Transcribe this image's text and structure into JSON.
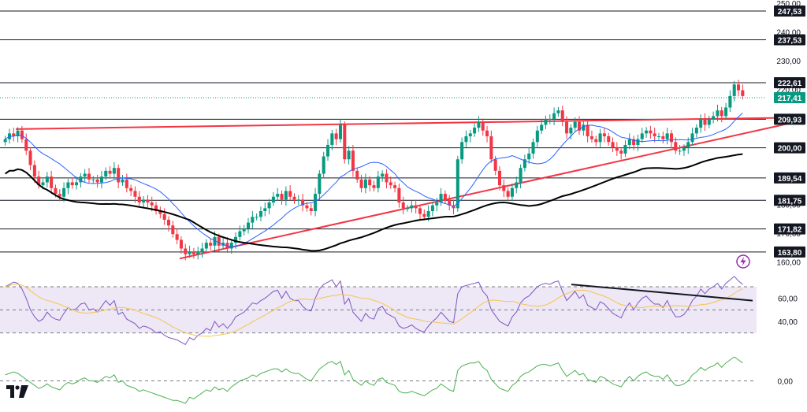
{
  "colors": {
    "background": "#ffffff",
    "candle_up": "#089981",
    "candle_down": "#f23645",
    "level_line": "#131722",
    "trend_line": "#f23645",
    "ma_fast": "#2962ff",
    "ma_slow": "#000000",
    "rsi_line": "#7e57c2",
    "rsi_signal": "#f7c548",
    "rsi_band": "#ede7f6",
    "momentum_line": "#4caf50",
    "last_price_tag": "#089981",
    "level_tag": "#131722"
  },
  "chart_data": {
    "type": "candlestick",
    "title": "",
    "ylim": [
      155,
      250
    ],
    "price_axis_ticks": [
      "250,00",
      "240,00",
      "230,00",
      "220,00",
      "210,00",
      "200,00",
      "190,00",
      "180,00",
      "170,00",
      "160,00"
    ],
    "support_resistance_levels": [
      {
        "value": 247.53,
        "label": "247,53"
      },
      {
        "value": 237.53,
        "label": "237,53"
      },
      {
        "value": 222.61,
        "label": "222,61"
      },
      {
        "value": 209.93,
        "label": "209,93"
      },
      {
        "value": 200.0,
        "label": "200,00"
      },
      {
        "value": 189.54,
        "label": "189,54"
      },
      {
        "value": 181.75,
        "label": "181,75"
      },
      {
        "value": 171.82,
        "label": "171,82"
      },
      {
        "value": 163.8,
        "label": "163,80"
      }
    ],
    "last_price": {
      "value": 217.41,
      "label": "217,41"
    },
    "close_series": [
      203,
      205,
      204,
      206,
      203,
      199,
      194,
      190,
      187,
      188,
      190,
      186,
      184,
      183,
      186,
      188,
      187,
      188,
      190,
      191,
      189,
      189,
      188,
      190,
      192,
      191,
      193,
      188,
      189,
      186,
      185,
      183,
      181,
      182,
      181,
      180,
      178,
      177,
      175,
      173,
      170,
      168,
      165,
      163,
      164,
      163,
      164,
      165,
      167,
      166,
      169,
      166,
      167,
      165,
      167,
      169,
      171,
      172,
      174,
      176,
      176,
      178,
      179,
      181,
      183,
      184,
      182,
      185,
      183,
      182,
      182,
      180,
      179,
      178,
      184,
      191,
      197,
      201,
      205,
      203,
      208,
      196,
      199,
      192,
      189,
      186,
      189,
      187,
      186,
      190,
      191,
      188,
      187,
      186,
      181,
      179,
      179,
      180,
      179,
      177,
      176,
      178,
      180,
      181,
      184,
      182,
      180,
      179,
      196,
      202,
      204,
      205,
      207,
      209,
      206,
      204,
      196,
      192,
      187,
      185,
      183,
      186,
      188,
      193,
      196,
      198,
      202,
      206,
      208,
      210,
      210,
      212,
      213,
      209,
      205,
      207,
      209,
      206,
      208,
      204,
      203,
      202,
      205,
      204,
      202,
      200,
      199,
      198,
      201,
      203,
      201,
      203,
      205,
      206,
      205,
      204,
      204,
      203,
      205,
      202,
      199,
      199,
      200,
      202,
      205,
      207,
      210,
      208,
      210,
      211,
      213,
      211,
      214,
      218,
      222,
      220,
      218
    ]
  },
  "price_axis": {
    "labels": [
      "250,00",
      "240,00",
      "230,00",
      "220,00",
      "210,00",
      "200,00",
      "190,00",
      "180,00",
      "170,00",
      "160,00"
    ]
  },
  "rsi_panel": {
    "axis_labels": [
      "60,00",
      "40,00"
    ],
    "levels": [
      70,
      50,
      30
    ],
    "ylim": [
      25,
      85
    ],
    "alert_icon": "lightning-icon",
    "series": [
      70,
      72,
      74,
      73,
      68,
      60,
      50,
      44,
      40,
      42,
      48,
      44,
      42,
      41,
      47,
      52,
      50,
      51,
      55,
      56,
      50,
      51,
      48,
      53,
      58,
      54,
      58,
      46,
      48,
      42,
      40,
      38,
      34,
      36,
      35,
      33,
      30,
      31,
      28,
      26,
      25,
      24,
      22,
      20,
      26,
      24,
      28,
      30,
      34,
      32,
      40,
      35,
      38,
      34,
      38,
      44,
      46,
      48,
      52,
      56,
      55,
      58,
      60,
      63,
      66,
      67,
      60,
      66,
      60,
      58,
      58,
      53,
      50,
      49,
      60,
      68,
      72,
      74,
      76,
      70,
      75,
      55,
      60,
      48,
      44,
      40,
      47,
      43,
      42,
      51,
      53,
      47,
      45,
      43,
      36,
      34,
      35,
      37,
      34,
      32,
      31,
      36,
      40,
      43,
      48,
      44,
      40,
      39,
      64,
      70,
      71,
      72,
      73,
      74,
      66,
      62,
      50,
      45,
      40,
      38,
      36,
      44,
      48,
      56,
      60,
      62,
      66,
      70,
      72,
      73,
      72,
      74,
      75,
      66,
      58,
      62,
      66,
      60,
      63,
      54,
      52,
      50,
      57,
      55,
      51,
      47,
      45,
      43,
      51,
      56,
      50,
      56,
      60,
      62,
      58,
      55,
      55,
      52,
      58,
      50,
      44,
      44,
      46,
      51,
      58,
      62,
      68,
      64,
      68,
      70,
      73,
      68,
      73,
      76,
      79,
      75,
      72
    ]
  },
  "momentum_panel": {
    "axis_label": "0,00",
    "ylim": [
      -15,
      15
    ],
    "series": [
      4,
      5,
      6,
      5,
      3,
      1,
      -1,
      -3,
      -5,
      -4,
      -2,
      -4,
      -5,
      -6,
      -3,
      -1,
      -2,
      -1,
      1,
      2,
      0,
      0,
      -1,
      1,
      3,
      2,
      4,
      -1,
      0,
      -3,
      -4,
      -5,
      -7,
      -6,
      -7,
      -8,
      -9,
      -10,
      -11,
      -12,
      -13,
      -13,
      -14,
      -15,
      -11,
      -12,
      -10,
      -8,
      -6,
      -7,
      -4,
      -6,
      -5,
      -7,
      -4,
      -2,
      0,
      1,
      2,
      4,
      3,
      5,
      6,
      7,
      8,
      8,
      6,
      8,
      6,
      5,
      5,
      3,
      1,
      0,
      4,
      8,
      10,
      12,
      13,
      11,
      13,
      4,
      7,
      1,
      -1,
      -3,
      0,
      -2,
      -3,
      1,
      2,
      -1,
      -2,
      -3,
      -7,
      -8,
      -8,
      -7,
      -8,
      -9,
      -10,
      -8,
      -6,
      -5,
      -2,
      -4,
      -6,
      -7,
      7,
      10,
      11,
      12,
      12,
      13,
      9,
      7,
      1,
      -2,
      -5,
      -6,
      -7,
      -3,
      -1,
      3,
      5,
      6,
      8,
      10,
      11,
      11,
      10,
      11,
      12,
      7,
      3,
      5,
      7,
      4,
      5,
      1,
      0,
      -1,
      3,
      2,
      0,
      -2,
      -3,
      -4,
      0,
      3,
      0,
      3,
      5,
      6,
      4,
      3,
      3,
      1,
      4,
      0,
      -3,
      -3,
      -2,
      0,
      4,
      6,
      9,
      7,
      9,
      10,
      12,
      9,
      12,
      14,
      16,
      14,
      12
    ]
  },
  "branding": {
    "logo": "tradingview-logo"
  }
}
